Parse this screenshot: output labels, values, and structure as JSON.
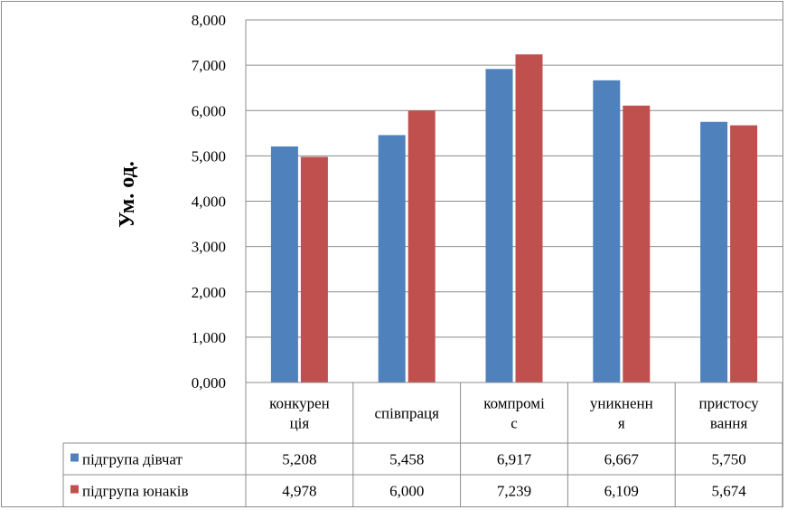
{
  "chart_data": {
    "type": "bar",
    "ylabel": "Ум. од.",
    "ylim": [
      0,
      8
    ],
    "yticks": [
      "0,000",
      "1,000",
      "2,000",
      "3,000",
      "4,000",
      "5,000",
      "6,000",
      "7,000",
      "8,000"
    ],
    "grid": true,
    "categories": [
      [
        "конкурен",
        "ція"
      ],
      [
        "співпраця"
      ],
      [
        "компромі",
        "с"
      ],
      [
        "уникненн",
        "я"
      ],
      [
        "пристосу",
        "вання"
      ]
    ],
    "series": [
      {
        "name": "підгрупа дівчат",
        "color": "#4f81bd",
        "values": [
          5.208,
          5.458,
          6.917,
          6.667,
          5.75
        ],
        "labels": [
          "5,208",
          "5,458",
          "6,917",
          "6,667",
          "5,750"
        ]
      },
      {
        "name": "підгрупа юнаків",
        "color": "#c0504d",
        "values": [
          4.978,
          6.0,
          7.239,
          6.109,
          5.674
        ],
        "labels": [
          "4,978",
          "6,000",
          "7,239",
          "6,109",
          "5,674"
        ]
      }
    ],
    "legend": "data-table-left"
  }
}
